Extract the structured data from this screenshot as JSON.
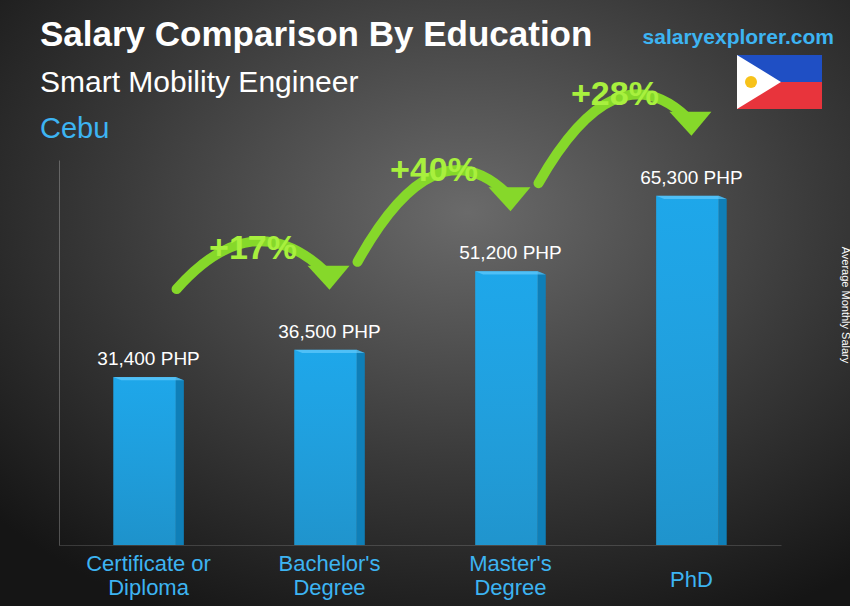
{
  "chart_data": {
    "type": "bar",
    "title": "Salary Comparison By Education",
    "subtitle": "Smart Mobility Engineer",
    "location": "Cebu",
    "source": "salaryexplorer.com",
    "y_label": "Average Monthly Salary",
    "categories": [
      "Certificate or Diploma",
      "Bachelor's Degree",
      "Master's Degree",
      "PhD"
    ],
    "values": [
      31400,
      36500,
      51200,
      65300
    ],
    "value_labels": [
      "31,400 PHP",
      "36,500 PHP",
      "51,200 PHP",
      "65,300 PHP"
    ],
    "annotations": [
      "+17%",
      "+40%",
      "+28%"
    ],
    "color": "#1ea7ea",
    "data_labels": true,
    "tick_labels": "x",
    "grid": false,
    "ylim": [
      0,
      72000
    ],
    "yticks": []
  }
}
